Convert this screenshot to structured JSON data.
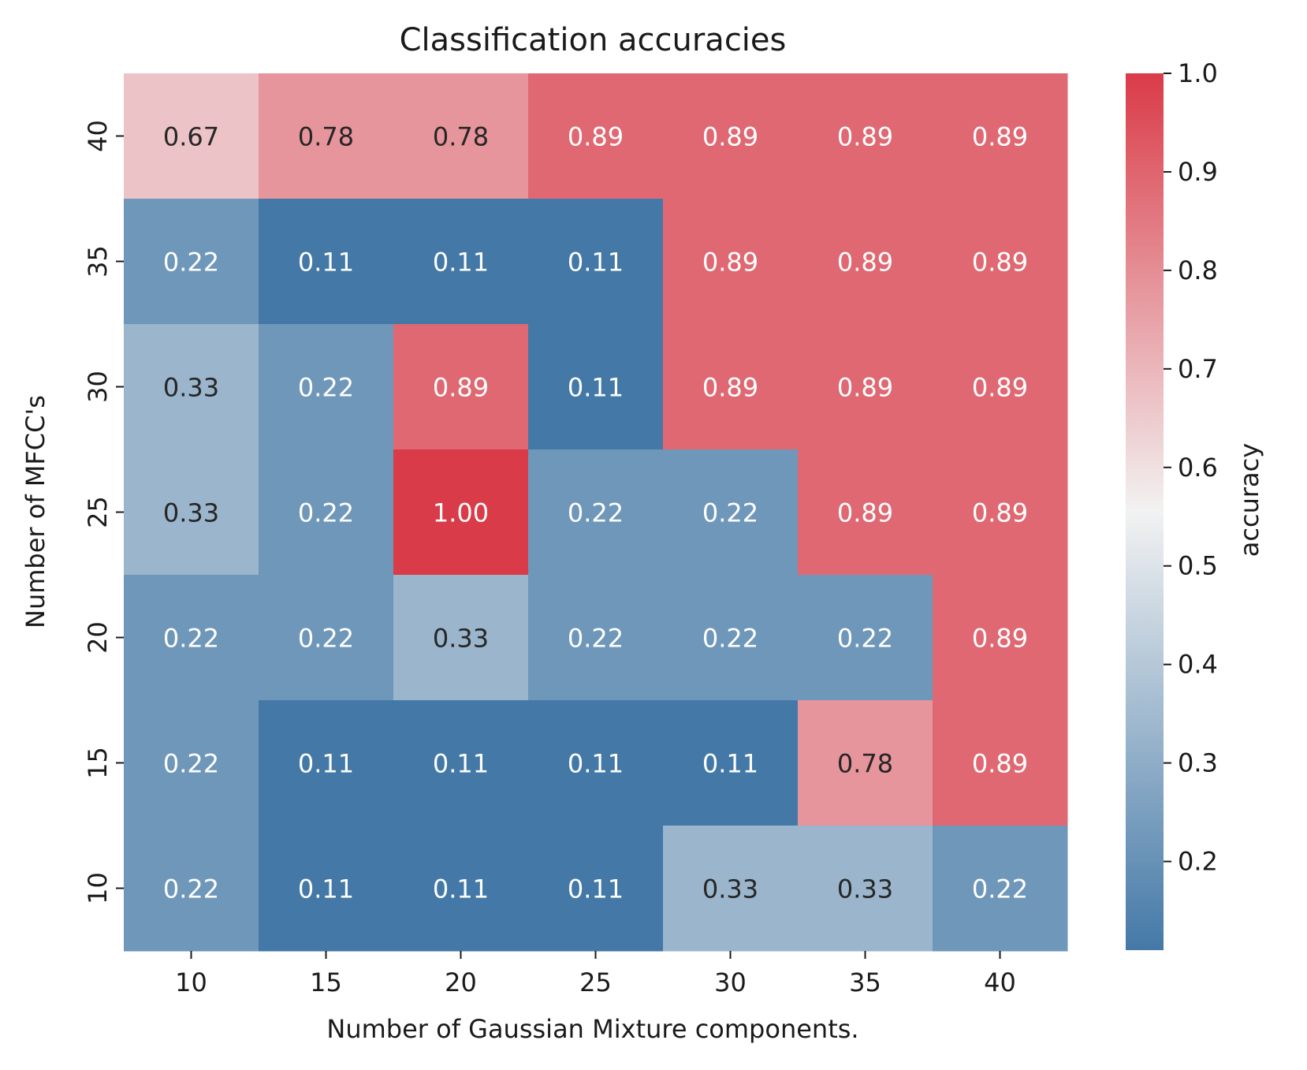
{
  "chart_data": {
    "type": "heatmap",
    "title": "Classification accuracies",
    "xlabel": "Number of Gaussian Mixture components.",
    "ylabel": "Number of MFCC's",
    "x_categories": [
      "10",
      "15",
      "20",
      "25",
      "30",
      "35",
      "40"
    ],
    "y_categories": [
      "40",
      "35",
      "30",
      "25",
      "20",
      "15",
      "10"
    ],
    "values": [
      [
        0.67,
        0.78,
        0.78,
        0.89,
        0.89,
        0.89,
        0.89
      ],
      [
        0.22,
        0.11,
        0.11,
        0.11,
        0.89,
        0.89,
        0.89
      ],
      [
        0.33,
        0.22,
        0.89,
        0.11,
        0.89,
        0.89,
        0.89
      ],
      [
        0.33,
        0.22,
        1.0,
        0.22,
        0.22,
        0.89,
        0.89
      ],
      [
        0.22,
        0.22,
        0.33,
        0.22,
        0.22,
        0.22,
        0.89
      ],
      [
        0.22,
        0.11,
        0.11,
        0.11,
        0.11,
        0.78,
        0.89
      ],
      [
        0.22,
        0.11,
        0.11,
        0.11,
        0.33,
        0.33,
        0.22
      ]
    ],
    "annotation_format": "2dp",
    "colorbar": {
      "label": "accuracy",
      "range": [
        0.11,
        1.0
      ],
      "ticks": [
        "0.2",
        "0.3",
        "0.4",
        "0.5",
        "0.6",
        "0.7",
        "0.8",
        "0.9",
        "1.0"
      ],
      "colormap": [
        "#4479a7",
        "#f2f2f2",
        "#da3b48"
      ]
    },
    "grid": false,
    "legend": "colorbar-right"
  }
}
